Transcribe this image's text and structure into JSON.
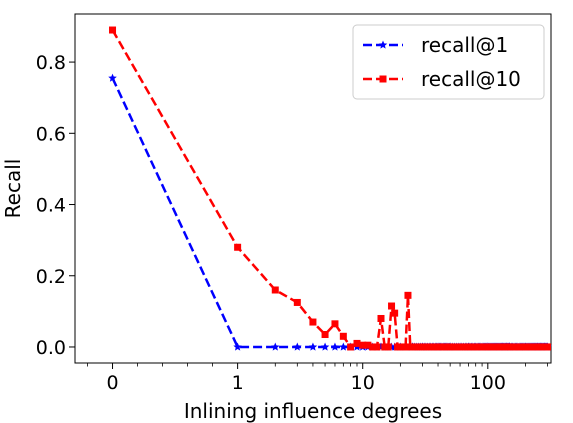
{
  "chart_data": {
    "type": "line",
    "xlabel": "Inlining influence degrees",
    "ylabel": "Recall",
    "x_scale": "symlog",
    "xlim": [
      -0.3,
      320
    ],
    "ylim": [
      -0.045,
      0.935
    ],
    "x_ticks": [
      {
        "value": 0,
        "label": "0"
      },
      {
        "value": 1,
        "label": "1"
      },
      {
        "value": 10,
        "label": "10"
      },
      {
        "value": 100,
        "label": "100"
      }
    ],
    "y_ticks": [
      {
        "value": 0.0,
        "label": "0.0"
      },
      {
        "value": 0.2,
        "label": "0.2"
      },
      {
        "value": 0.4,
        "label": "0.4"
      },
      {
        "value": 0.6,
        "label": "0.6"
      },
      {
        "value": 0.8,
        "label": "0.8"
      }
    ],
    "grid": false,
    "legend_position": "top-right",
    "series": [
      {
        "name": "recall@1",
        "color": "#0000ff",
        "line_style": "dashed",
        "marker": "star",
        "x": [
          0,
          1,
          2,
          3,
          4,
          5,
          6,
          7,
          8,
          9,
          10,
          11,
          12,
          13,
          14,
          15,
          16,
          17,
          18,
          19,
          20,
          22,
          25,
          30,
          40,
          50,
          70,
          100,
          150,
          200,
          250,
          300
        ],
        "y": [
          0.755,
          0,
          0,
          0,
          0,
          0,
          0,
          0,
          0,
          0,
          0,
          0,
          0,
          0,
          0,
          0,
          0,
          0,
          0,
          0,
          0,
          0,
          0,
          0,
          0,
          0,
          0,
          0,
          0,
          0,
          0,
          0
        ]
      },
      {
        "name": "recall@10",
        "color": "#ff0000",
        "line_style": "dashed",
        "marker": "square",
        "x": [
          0,
          1,
          2,
          3,
          4,
          5,
          6,
          7,
          8,
          9,
          10,
          11,
          12,
          13,
          14,
          15,
          16,
          17,
          18,
          19,
          20,
          21,
          22,
          23,
          24,
          25,
          30,
          40,
          50,
          70,
          100,
          150,
          200,
          250,
          300
        ],
        "y": [
          0.89,
          0.28,
          0.16,
          0.125,
          0.07,
          0.035,
          0.065,
          0.03,
          0,
          0.01,
          0.005,
          0.005,
          0,
          0,
          0.08,
          0,
          0,
          0.115,
          0.095,
          0,
          0,
          0,
          0,
          0.145,
          0,
          0,
          0,
          0,
          0,
          0,
          0,
          0,
          0,
          0,
          0
        ]
      }
    ]
  }
}
